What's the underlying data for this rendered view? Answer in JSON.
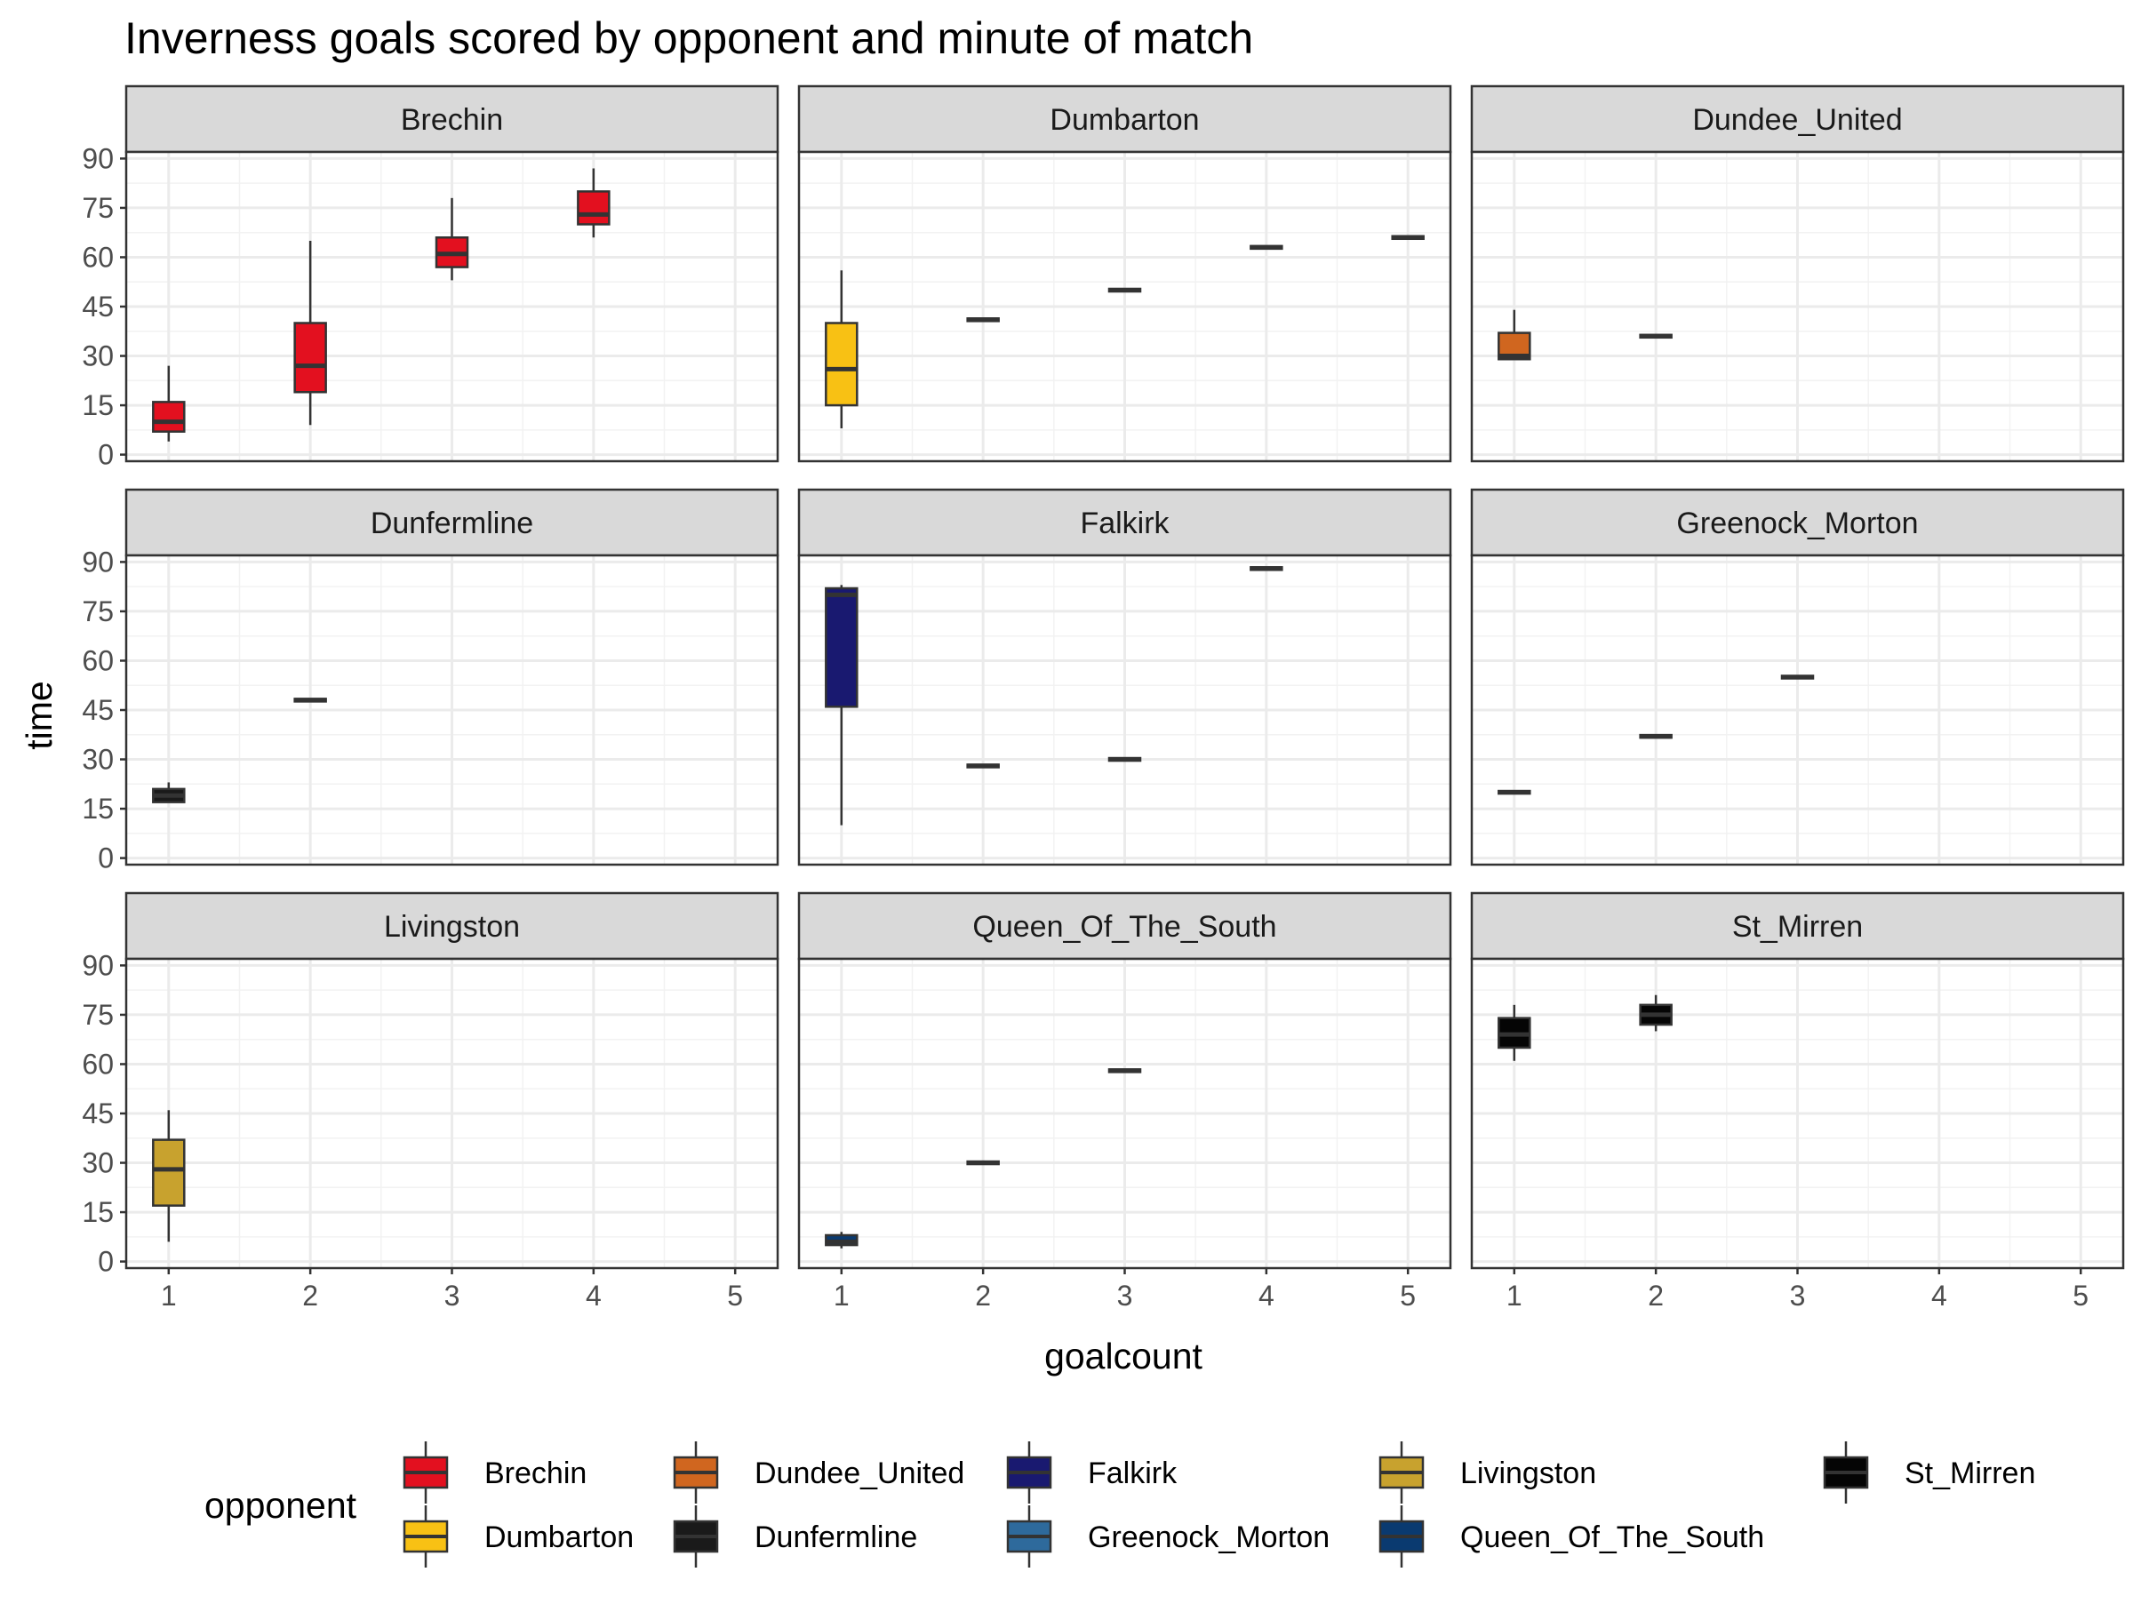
{
  "chart_data": {
    "type": "boxplot",
    "title": "Inverness goals scored by opponent and minute of match",
    "xlabel": "goalcount",
    "ylabel": "time",
    "x_ticks": [
      1,
      2,
      3,
      4,
      5
    ],
    "y_ticks": [
      0,
      15,
      30,
      45,
      60,
      75,
      90
    ],
    "xlim": [
      0.7,
      5.3
    ],
    "ylim": [
      -2,
      92
    ],
    "grid": true,
    "facets": [
      {
        "name": "Brechin",
        "color": "#E3101F",
        "boxes": [
          {
            "x": 1,
            "min": 4,
            "q1": 7,
            "median": 10,
            "q3": 16,
            "max": 27
          },
          {
            "x": 2,
            "min": 9,
            "q1": 19,
            "median": 27,
            "q3": 40,
            "max": 65
          },
          {
            "x": 3,
            "min": 53,
            "q1": 57,
            "median": 61,
            "q3": 66,
            "max": 78
          },
          {
            "x": 4,
            "min": 66,
            "q1": 70,
            "median": 73,
            "q3": 80,
            "max": 87
          }
        ]
      },
      {
        "name": "Dumbarton",
        "color": "#F8C114",
        "boxes": [
          {
            "x": 1,
            "min": 8,
            "q1": 15,
            "median": 26,
            "q3": 40,
            "max": 56
          },
          {
            "x": 2,
            "min": 41,
            "q1": 41,
            "median": 41,
            "q3": 41,
            "max": 41
          },
          {
            "x": 3,
            "min": 50,
            "q1": 50,
            "median": 50,
            "q3": 50,
            "max": 50
          },
          {
            "x": 4,
            "min": 63,
            "q1": 63,
            "median": 63,
            "q3": 63,
            "max": 63
          },
          {
            "x": 5,
            "min": 66,
            "q1": 66,
            "median": 66,
            "q3": 66,
            "max": 66
          }
        ]
      },
      {
        "name": "Dundee_United",
        "color": "#D0661F",
        "boxes": [
          {
            "x": 1,
            "min": 29,
            "q1": 29,
            "median": 30,
            "q3": 37,
            "max": 44
          },
          {
            "x": 2,
            "min": 36,
            "q1": 36,
            "median": 36,
            "q3": 36,
            "max": 36
          }
        ]
      },
      {
        "name": "Dunfermline",
        "color": "#1A1A1A",
        "boxes": [
          {
            "x": 1,
            "min": 17,
            "q1": 17,
            "median": 19,
            "q3": 21,
            "max": 23
          },
          {
            "x": 2,
            "min": 48,
            "q1": 48,
            "median": 48,
            "q3": 48,
            "max": 48
          }
        ]
      },
      {
        "name": "Falkirk",
        "color": "#191970",
        "boxes": [
          {
            "x": 1,
            "min": 10,
            "q1": 46,
            "median": 80,
            "q3": 82,
            "max": 83
          },
          {
            "x": 2,
            "min": 28,
            "q1": 28,
            "median": 28,
            "q3": 28,
            "max": 28
          },
          {
            "x": 3,
            "min": 30,
            "q1": 30,
            "median": 30,
            "q3": 30,
            "max": 30
          },
          {
            "x": 4,
            "min": 88,
            "q1": 88,
            "median": 88,
            "q3": 88,
            "max": 88
          }
        ]
      },
      {
        "name": "Greenock_Morton",
        "color": "#2E6A9C",
        "boxes": [
          {
            "x": 1,
            "min": 20,
            "q1": 20,
            "median": 20,
            "q3": 20,
            "max": 20
          },
          {
            "x": 2,
            "min": 37,
            "q1": 37,
            "median": 37,
            "q3": 37,
            "max": 37
          },
          {
            "x": 3,
            "min": 55,
            "q1": 55,
            "median": 55,
            "q3": 55,
            "max": 55
          }
        ]
      },
      {
        "name": "Livingston",
        "color": "#C8A22E",
        "boxes": [
          {
            "x": 1,
            "min": 6,
            "q1": 17,
            "median": 28,
            "q3": 37,
            "max": 46
          }
        ]
      },
      {
        "name": "Queen_Of_The_South",
        "color": "#0A3A70",
        "boxes": [
          {
            "x": 1,
            "min": 4,
            "q1": 5,
            "median": 6,
            "q3": 8,
            "max": 9
          },
          {
            "x": 2,
            "min": 30,
            "q1": 30,
            "median": 30,
            "q3": 30,
            "max": 30
          },
          {
            "x": 3,
            "min": 58,
            "q1": 58,
            "median": 58,
            "q3": 58,
            "max": 58
          }
        ]
      },
      {
        "name": "St_Mirren",
        "color": "#050505",
        "boxes": [
          {
            "x": 1,
            "min": 61,
            "q1": 65,
            "median": 69,
            "q3": 74,
            "max": 78
          },
          {
            "x": 2,
            "min": 70,
            "q1": 72,
            "median": 75,
            "q3": 78,
            "max": 81
          }
        ]
      }
    ],
    "legend": {
      "title": "opponent",
      "position": "bottom",
      "entries": [
        {
          "name": "Brechin",
          "color": "#E3101F"
        },
        {
          "name": "Dumbarton",
          "color": "#F8C114"
        },
        {
          "name": "Dundee_United",
          "color": "#D0661F"
        },
        {
          "name": "Dunfermline",
          "color": "#1A1A1A"
        },
        {
          "name": "Falkirk",
          "color": "#191970"
        },
        {
          "name": "Greenock_Morton",
          "color": "#2E6A9C"
        },
        {
          "name": "Livingston",
          "color": "#C8A22E"
        },
        {
          "name": "Queen_Of_The_South",
          "color": "#0A3A70"
        },
        {
          "name": "St_Mirren",
          "color": "#050505"
        }
      ]
    }
  }
}
